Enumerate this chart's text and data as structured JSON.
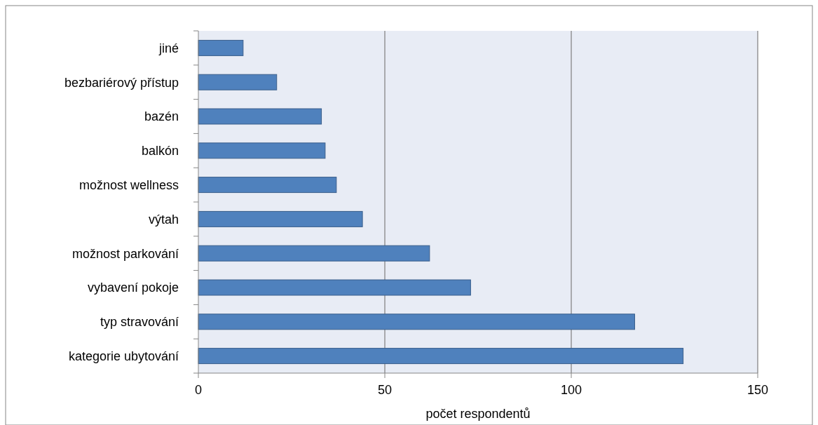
{
  "chart_data": {
    "type": "bar",
    "orientation": "horizontal",
    "xlabel": "počet respondentů",
    "categories": [
      "jiné",
      "bezbariérový přístup",
      "bazén",
      "balkón",
      "možnost wellness",
      "výtah",
      "možnost parkování",
      "vybavení pokoje",
      "typ stravování",
      "kategorie ubytování"
    ],
    "values": [
      12,
      21,
      33,
      34,
      37,
      44,
      62,
      73,
      117,
      130
    ],
    "color": "#4f81bd",
    "xlim": [
      0,
      150
    ],
    "xticks": [
      0,
      50,
      100,
      150
    ],
    "grid": "x"
  }
}
